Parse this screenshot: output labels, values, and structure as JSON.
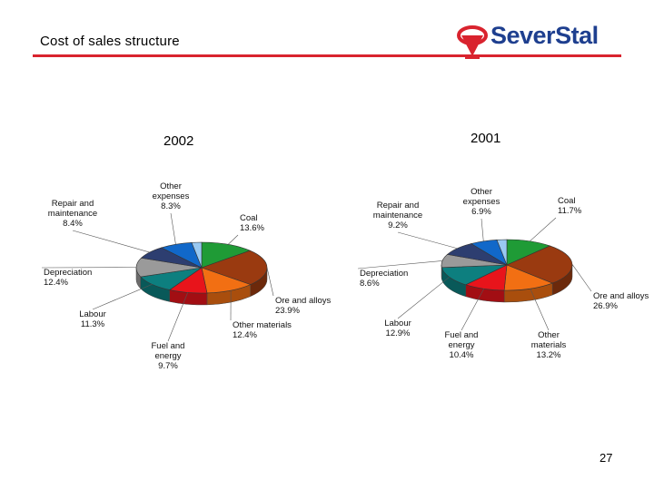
{
  "slide": {
    "title": "Cost of sales structure",
    "page_number": "27"
  },
  "logo": {
    "text": "SeverStal",
    "brand_color": "#1e3f8f",
    "accent_color": "#d9232e"
  },
  "chart_data": [
    {
      "type": "pie",
      "title": "2002",
      "slices": [
        {
          "name": "Coal",
          "value": 13.6,
          "color": "#1f9b36",
          "label_lines": [
            "Coal",
            "13.6%"
          ]
        },
        {
          "name": "Ore and alloys",
          "value": 23.9,
          "color": "#9a3a10",
          "label_lines": [
            "Ore and alloys",
            "23.9%"
          ]
        },
        {
          "name": "Other materials",
          "value": 12.4,
          "color": "#f26f13",
          "label_lines": [
            "Other materials",
            "12.4%"
          ]
        },
        {
          "name": "Fuel and energy",
          "value": 9.7,
          "color": "#e8141b",
          "label_lines": [
            "Fuel and",
            "energy",
            "9.7%"
          ]
        },
        {
          "name": "Labour",
          "value": 11.3,
          "color": "#0d7f7f",
          "label_lines": [
            "Labour",
            "11.3%"
          ]
        },
        {
          "name": "Depreciation",
          "value": 12.4,
          "color": "#9a9a9a",
          "label_lines": [
            "Depreciation",
            "12.4%"
          ]
        },
        {
          "name": "Repair and maintenance",
          "value": 8.4,
          "color": "#2d3e70",
          "label_lines": [
            "Repair and",
            "maintenance",
            "8.4%"
          ]
        },
        {
          "name": "Other expenses",
          "value": 8.3,
          "color": "#1168c9",
          "label_lines": [
            "Other",
            "expenses",
            "8.3%"
          ]
        },
        {
          "name": "Other",
          "value": 0,
          "color": "#99c9f2",
          "label_lines": []
        }
      ]
    },
    {
      "type": "pie",
      "title": "2001",
      "slices": [
        {
          "name": "Coal",
          "value": 11.7,
          "color": "#1f9b36",
          "label_lines": [
            "Coal",
            "11.7%"
          ]
        },
        {
          "name": "Ore and alloys",
          "value": 26.9,
          "color": "#9a3a10",
          "label_lines": [
            "Ore and alloys",
            "26.9%"
          ]
        },
        {
          "name": "Other materials",
          "value": 13.2,
          "color": "#f26f13",
          "label_lines": [
            "Other",
            "materials",
            "13.2%"
          ]
        },
        {
          "name": "Fuel and energy",
          "value": 10.4,
          "color": "#e8141b",
          "label_lines": [
            "Fuel and",
            "energy",
            "10.4%"
          ]
        },
        {
          "name": "Labour",
          "value": 12.9,
          "color": "#0d7f7f",
          "label_lines": [
            "Labour",
            "12.9%"
          ]
        },
        {
          "name": "Depreciation",
          "value": 8.6,
          "color": "#9a9a9a",
          "label_lines": [
            "Depreciation",
            "8.6%"
          ]
        },
        {
          "name": "Repair and maintenance",
          "value": 9.2,
          "color": "#2d3e70",
          "label_lines": [
            "Repair and",
            "maintenance",
            "9.2%"
          ]
        },
        {
          "name": "Other expenses",
          "value": 6.9,
          "color": "#1168c9",
          "label_lines": [
            "Other",
            "expenses",
            "6.9%"
          ]
        },
        {
          "name": "Other",
          "value": 0,
          "color": "#99c9f2",
          "label_lines": []
        }
      ]
    }
  ]
}
